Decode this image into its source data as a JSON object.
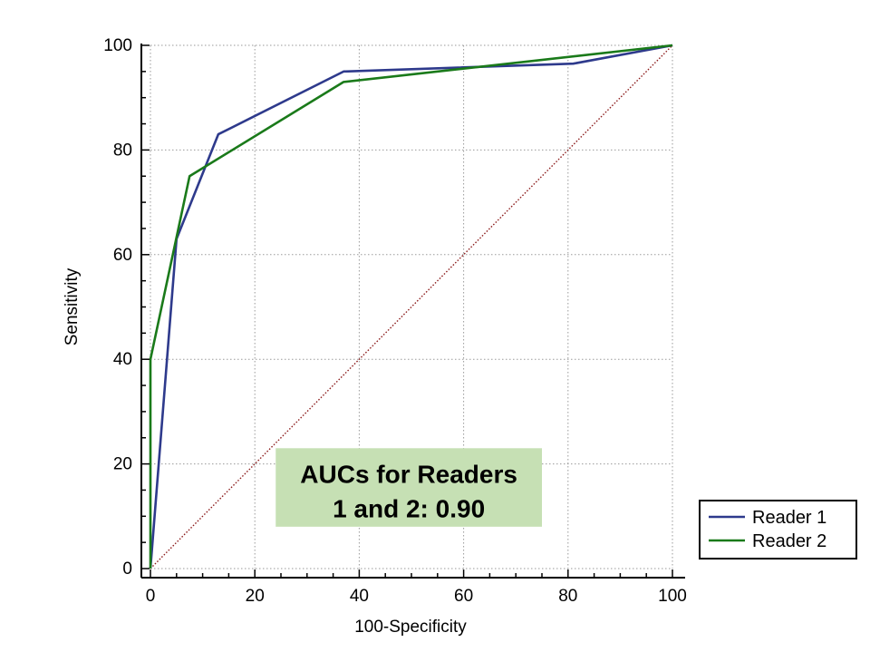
{
  "chart_data": {
    "type": "line",
    "title": "",
    "xlabel": "100-Specificity",
    "ylabel": "Sensitivity",
    "xlim": [
      0,
      100
    ],
    "ylim": [
      0,
      100
    ],
    "x_ticks": [
      0,
      20,
      40,
      60,
      80,
      100
    ],
    "y_ticks": [
      0,
      20,
      40,
      60,
      80,
      100
    ],
    "grid": true,
    "legend_position": "bottom-right-outside",
    "series": [
      {
        "name": "Reader 1",
        "color": "#2e3a8c",
        "x": [
          0,
          5,
          13,
          37,
          81,
          100
        ],
        "y": [
          0,
          63,
          83,
          95,
          96.5,
          100
        ]
      },
      {
        "name": "Reader 2",
        "color": "#1a7a1a",
        "x": [
          0,
          0,
          7.5,
          37,
          100
        ],
        "y": [
          0,
          40,
          75,
          93,
          100
        ]
      }
    ],
    "reference_line": {
      "x": [
        0,
        100
      ],
      "y": [
        0,
        100
      ],
      "color": "#8b1a1a",
      "style": "dotted"
    },
    "annotation": {
      "lines": [
        "AUCs for Readers",
        "1 and 2: 0.90"
      ],
      "background": "#c6e0b4",
      "x_range": [
        24,
        75
      ],
      "y_range": [
        8,
        23
      ]
    }
  }
}
